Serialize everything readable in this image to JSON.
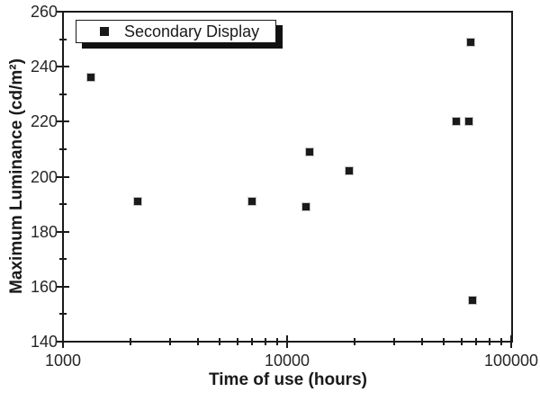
{
  "chart_data": {
    "type": "scatter",
    "title": "",
    "xlabel": "Time of use (hours)",
    "ylabel": "Maximum Luminance (cd/m²)",
    "x_scale": "log",
    "y_scale": "linear",
    "xlim": [
      1000,
      100000
    ],
    "ylim": [
      140,
      260
    ],
    "x_major_ticks": [
      1000,
      10000,
      100000
    ],
    "x_tick_labels": [
      "1000",
      "10000",
      "100000"
    ],
    "y_major_ticks": [
      140,
      160,
      180,
      200,
      220,
      240,
      260
    ],
    "y_tick_labels": [
      "140",
      "160",
      "180",
      "200",
      "220",
      "240",
      "260"
    ],
    "y_minor_ticks": [
      150,
      170,
      190,
      210,
      230,
      250
    ],
    "grid": false,
    "legend": {
      "position": "top-left",
      "entries": [
        {
          "label": "Secondary Display",
          "marker": "square",
          "color": "#1d191a"
        }
      ]
    },
    "series": [
      {
        "name": "Secondary Display",
        "marker": "square",
        "color": "#1d191a",
        "points": [
          {
            "x": 1330,
            "y": 236
          },
          {
            "x": 2160,
            "y": 191
          },
          {
            "x": 7000,
            "y": 191
          },
          {
            "x": 12100,
            "y": 189
          },
          {
            "x": 12600,
            "y": 209
          },
          {
            "x": 19000,
            "y": 202
          },
          {
            "x": 57000,
            "y": 220
          },
          {
            "x": 65000,
            "y": 220
          },
          {
            "x": 66000,
            "y": 249
          },
          {
            "x": 67000,
            "y": 155
          }
        ]
      }
    ]
  },
  "colors": {
    "axis": "#1a1a1a",
    "tick_text": "#262626",
    "marker": "#1d191a",
    "background": "#ffffff",
    "legend_shadow": "#111111"
  }
}
